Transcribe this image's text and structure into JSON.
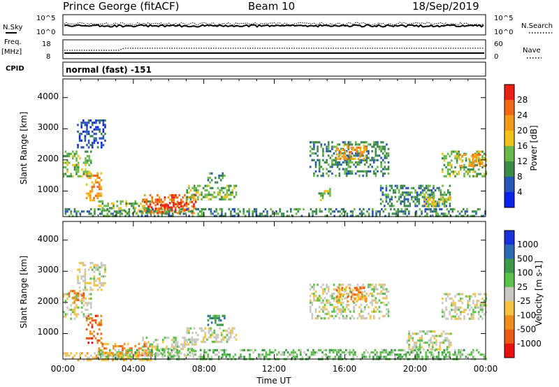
{
  "header": {
    "station": "Prince George (fitACF)",
    "beam": "Beam 10",
    "date": "18/Sep/2019"
  },
  "noise_panel": {
    "left_label": "N.Sky",
    "right_label": "N.Search",
    "left_ticks": [
      "10^5",
      "10^0"
    ],
    "right_ticks": [
      "10^5",
      "10^0"
    ]
  },
  "freq_panel": {
    "left_label_1": "Freq.",
    "left_label_2": "[MHz]",
    "left_ticks": [
      "18",
      "8"
    ],
    "right_label": "Nave",
    "right_ticks": [
      "60",
      "0"
    ]
  },
  "cpid_panel": {
    "label": "CPID",
    "text": "normal (fast) -151"
  },
  "colors": {
    "power": [
      "#0a23e8",
      "#2a55b8",
      "#3a8a4a",
      "#6ab84a",
      "#f2c21a",
      "#f49a1a",
      "#ef6a12",
      "#ea2012"
    ],
    "velocity": [
      "#ea1010",
      "#ec5a14",
      "#f08c1a",
      "#f6c240",
      "#c8c8c0",
      "#5ac24a",
      "#3a9a4a",
      "#2a68b8",
      "#1a30d8"
    ]
  },
  "x_axis": {
    "label": "Time UT",
    "ticks": [
      "00:00",
      "04:00",
      "08:00",
      "12:00",
      "16:00",
      "20:00",
      "00:00"
    ]
  },
  "chart_data": [
    {
      "type": "heatmap",
      "title": "Power",
      "xlabel": "Time UT",
      "ylabel": "Slant Range [km]",
      "xlim": [
        0,
        24
      ],
      "ylim": [
        180,
        4600
      ],
      "y_ticks": [
        1000,
        2000,
        3000,
        4000
      ],
      "colorbar": {
        "label": "Power [dB]",
        "ticks": [
          4,
          8,
          12,
          16,
          20,
          24,
          28
        ],
        "range": [
          0,
          30
        ]
      },
      "regions": [
        {
          "t": [
            0.0,
            1.6
          ],
          "r": [
            1500,
            2300
          ],
          "level": 3
        },
        {
          "t": [
            0.8,
            2.4
          ],
          "r": [
            2400,
            3300
          ],
          "level": 1
        },
        {
          "t": [
            1.3,
            2.2
          ],
          "r": [
            700,
            1600
          ],
          "level": 5
        },
        {
          "t": [
            2.0,
            5.0
          ],
          "r": [
            300,
            700
          ],
          "level": 3
        },
        {
          "t": [
            4.5,
            7.5
          ],
          "r": [
            300,
            900
          ],
          "level": 6
        },
        {
          "t": [
            5.0,
            7.0
          ],
          "r": [
            350,
            650
          ],
          "level": 7
        },
        {
          "t": [
            7.0,
            9.8
          ],
          "r": [
            700,
            1200
          ],
          "level": 3
        },
        {
          "t": [
            8.2,
            9.2
          ],
          "r": [
            1300,
            1600
          ],
          "level": 2
        },
        {
          "t": [
            0.0,
            24.0
          ],
          "r": [
            180,
            450
          ],
          "level": 2
        },
        {
          "t": [
            14.0,
            18.5
          ],
          "r": [
            1500,
            2600
          ],
          "level": 2
        },
        {
          "t": [
            15.5,
            17.2
          ],
          "r": [
            2000,
            2500
          ],
          "level": 5
        },
        {
          "t": [
            14.5,
            15.2
          ],
          "r": [
            700,
            1100
          ],
          "level": 3
        },
        {
          "t": [
            18.0,
            22.0
          ],
          "r": [
            500,
            1200
          ],
          "level": 2
        },
        {
          "t": [
            20.5,
            22.0
          ],
          "r": [
            500,
            900
          ],
          "level": 4
        },
        {
          "t": [
            21.5,
            24.0
          ],
          "r": [
            1500,
            2300
          ],
          "level": 3
        },
        {
          "t": [
            22.5,
            24.0
          ],
          "r": [
            1800,
            2200
          ],
          "level": 5
        }
      ]
    },
    {
      "type": "heatmap",
      "title": "Velocity",
      "xlabel": "Time UT",
      "ylabel": "Slant Range [km]",
      "xlim": [
        0,
        24
      ],
      "ylim": [
        180,
        4600
      ],
      "y_ticks": [
        1000,
        2000,
        3000,
        4000
      ],
      "colorbar": {
        "label": "Velocity [m s-1]",
        "ticks": [
          1000,
          500,
          100,
          25,
          -25,
          -100,
          -500,
          -1000
        ]
      },
      "regions": [
        {
          "t": [
            0.0,
            1.6
          ],
          "r": [
            1500,
            2300
          ],
          "level": 4
        },
        {
          "t": [
            0.3,
            1.2
          ],
          "r": [
            2000,
            2400
          ],
          "level": 2
        },
        {
          "t": [
            0.8,
            2.4
          ],
          "r": [
            2400,
            3300
          ],
          "level": 4
        },
        {
          "t": [
            1.3,
            2.2
          ],
          "r": [
            700,
            1600
          ],
          "level": 1
        },
        {
          "t": [
            2.0,
            5.0
          ],
          "r": [
            300,
            700
          ],
          "level": 2
        },
        {
          "t": [
            4.5,
            7.5
          ],
          "r": [
            300,
            900
          ],
          "level": 4
        },
        {
          "t": [
            7.0,
            9.8
          ],
          "r": [
            700,
            1200
          ],
          "level": 4
        },
        {
          "t": [
            8.2,
            9.2
          ],
          "r": [
            1300,
            1600
          ],
          "level": 6
        },
        {
          "t": [
            2.0,
            24.0
          ],
          "r": [
            180,
            500
          ],
          "level": 5
        },
        {
          "t": [
            0.0,
            5.0
          ],
          "r": [
            180,
            400
          ],
          "level": 3
        },
        {
          "t": [
            14.0,
            18.5
          ],
          "r": [
            1500,
            2600
          ],
          "level": 4
        },
        {
          "t": [
            15.5,
            17.2
          ],
          "r": [
            2000,
            2500
          ],
          "level": 2
        },
        {
          "t": [
            21.5,
            24.0
          ],
          "r": [
            1500,
            2300
          ],
          "level": 4
        },
        {
          "t": [
            19.5,
            22.0
          ],
          "r": [
            500,
            1100
          ],
          "level": 4
        }
      ]
    }
  ]
}
